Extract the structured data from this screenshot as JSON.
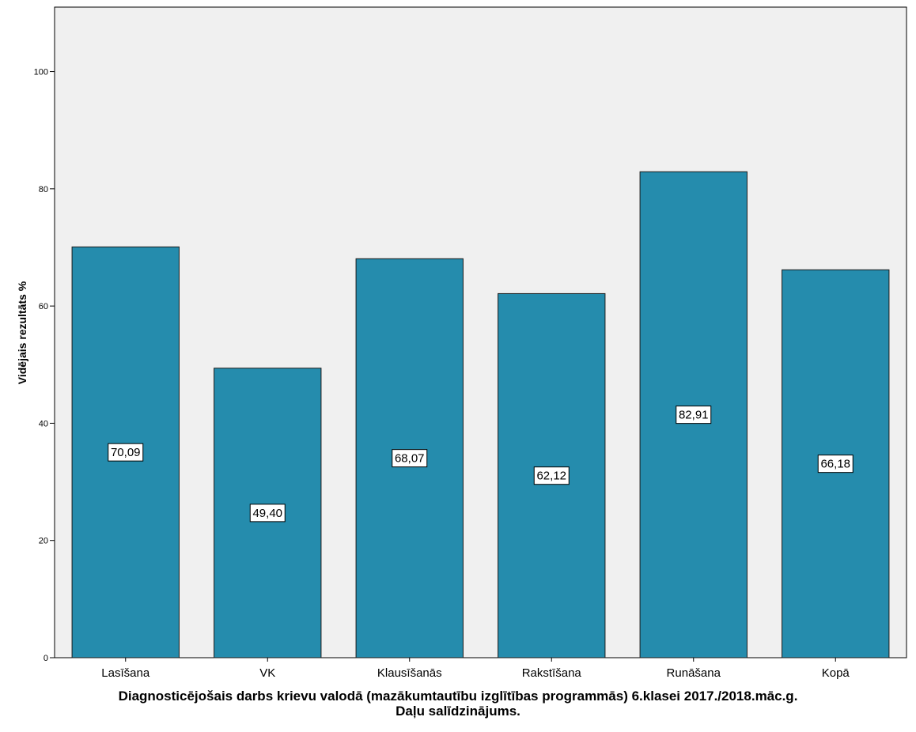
{
  "chart_data": {
    "type": "bar",
    "categories": [
      "Lasīšana",
      "VK",
      "Klausīšanās",
      "Rakstīšana",
      "Runāšana",
      "Kopā"
    ],
    "values": [
      70.09,
      49.4,
      68.07,
      62.12,
      82.91,
      66.18
    ],
    "value_labels": [
      "70,09",
      "49,40",
      "68,07",
      "62,12",
      "82,91",
      "66,18"
    ],
    "ylabel": "Vidējais rezultāts %",
    "xlabel": [
      "Diagnosticējošais darbs krievu valodā (mazākumtautību izglītības programmās) 6.klasei 2017./2018.māc.g.",
      "Daļu salīdzinājums."
    ],
    "ylim": [
      0,
      111
    ],
    "yticks": [
      0,
      20,
      40,
      60,
      80,
      100
    ],
    "grid": false,
    "bar_color": "#258cad",
    "plot_background": "#f0f0f0"
  }
}
